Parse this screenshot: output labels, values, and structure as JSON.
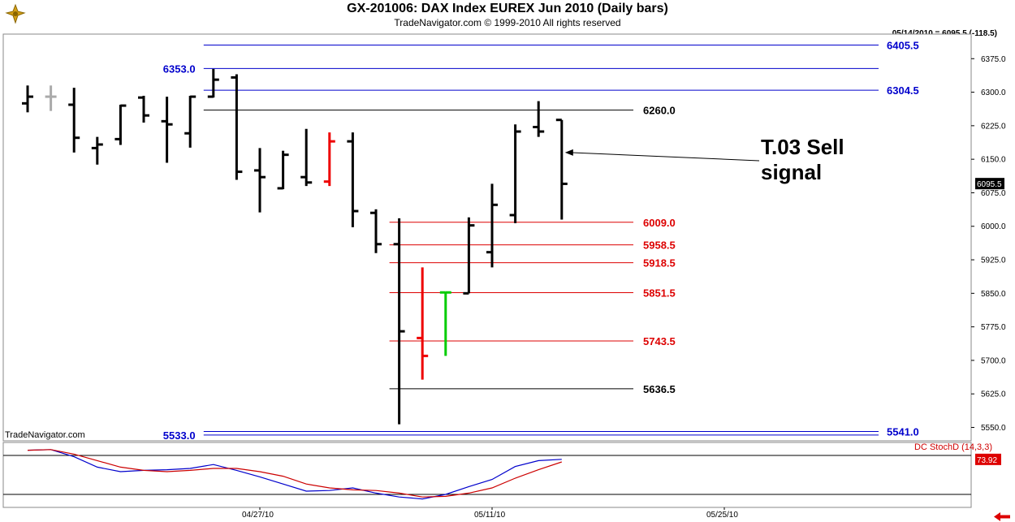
{
  "header": {
    "title": "GX-201006:  DAX Index EUREX Jun 2010  (Daily bars)",
    "subtitle": "TradeNavigator.com © 1999-2010 All rights reserved",
    "last_info": "05/14/2010 = 6095.5 (-118.5)",
    "watermark": "TradeNavigator.com",
    "logo_icon": "ship-wheel-logo-icon",
    "scroll_icon": "left-arrow-icon"
  },
  "annotation": {
    "line1": "T.03 Sell",
    "line2": "signal"
  },
  "chart_data": [
    {
      "type": "ohlc",
      "title": "GX-201006:  DAX Index EUREX Jun 2010  (Daily bars)",
      "colors": {
        "up": "#000000",
        "down": "#000000",
        "highlight_red": "#ee0000",
        "highlight_green": "#00cc00",
        "grey": "#aaaaaa",
        "blue_levels": "#0000cc",
        "red_levels": "#dd0000"
      },
      "x_ticks": [
        {
          "label": "04/27/10",
          "index": 10
        },
        {
          "label": "05/11/10",
          "index": 20
        },
        {
          "label": "05/25/10",
          "index": 30
        }
      ],
      "ylim": [
        5520,
        6430
      ],
      "y_ticks": [
        5550.0,
        5625.0,
        5700.0,
        5775.0,
        5850.0,
        5925.0,
        6000.0,
        6075.0,
        6150.0,
        6225.0,
        6300.0,
        6375.0
      ],
      "last_price_label": "6095.5",
      "bars": [
        {
          "index": 0,
          "open": 6275,
          "high": 6315,
          "low": 6255,
          "close": 6290,
          "color": "#000000"
        },
        {
          "index": 1,
          "open": 6290,
          "high": 6315,
          "low": 6258,
          "close": 6290,
          "color": "#aaaaaa"
        },
        {
          "index": 2,
          "open": 6272,
          "high": 6310,
          "low": 6165,
          "close": 6198,
          "color": "#000000"
        },
        {
          "index": 3,
          "open": 6175,
          "high": 6200,
          "low": 6138,
          "close": 6183,
          "color": "#000000"
        },
        {
          "index": 4,
          "open": 6195,
          "high": 6272,
          "low": 6182,
          "close": 6270,
          "color": "#000000"
        },
        {
          "index": 5,
          "open": 6288,
          "high": 6292,
          "low": 6232,
          "close": 6248,
          "color": "#000000"
        },
        {
          "index": 6,
          "open": 6235,
          "high": 6290,
          "low": 6142,
          "close": 6228,
          "color": "#000000"
        },
        {
          "index": 7,
          "open": 6208,
          "high": 6292,
          "low": 6176,
          "close": 6290,
          "color": "#000000"
        },
        {
          "index": 8,
          "open": 6290,
          "high": 6352,
          "low": 6288,
          "close": 6328,
          "color": "#000000"
        },
        {
          "index": 9,
          "open": 6333,
          "high": 6340,
          "low": 6104,
          "close": 6122,
          "color": "#000000"
        },
        {
          "index": 10,
          "open": 6125,
          "high": 6175,
          "low": 6031,
          "close": 6110,
          "color": "#000000"
        },
        {
          "index": 11,
          "open": 6085,
          "high": 6169,
          "low": 6083,
          "close": 6160,
          "color": "#000000"
        },
        {
          "index": 12,
          "open": 6110,
          "high": 6218,
          "low": 6090,
          "close": 6098,
          "color": "#000000"
        },
        {
          "index": 13,
          "open": 6100,
          "high": 6210,
          "low": 6090,
          "close": 6190,
          "color": "#ee0000"
        },
        {
          "index": 14,
          "open": 6190,
          "high": 6210,
          "low": 5998,
          "close": 6034,
          "color": "#000000"
        },
        {
          "index": 15,
          "open": 6030,
          "high": 6038,
          "low": 5940,
          "close": 5960,
          "color": "#000000"
        },
        {
          "index": 16,
          "open": 5960,
          "high": 6018,
          "low": 5557,
          "close": 5765,
          "color": "#000000"
        },
        {
          "index": 17,
          "open": 5750,
          "high": 5908,
          "low": 5657,
          "close": 5710,
          "color": "#ee0000"
        },
        {
          "index": 18,
          "open": 5852,
          "high": 5852,
          "low": 5710,
          "close": 5852,
          "color": "#00cc00"
        },
        {
          "index": 19,
          "open": 5850,
          "high": 6020,
          "low": 5850,
          "close": 6002,
          "color": "#000000"
        },
        {
          "index": 20,
          "open": 5942,
          "high": 6095,
          "low": 5908,
          "close": 6048,
          "color": "#000000"
        },
        {
          "index": 21,
          "open": 6025,
          "high": 6228,
          "low": 6007,
          "close": 6212,
          "color": "#000000"
        },
        {
          "index": 22,
          "open": 6222,
          "high": 6280,
          "low": 6200,
          "close": 6212,
          "color": "#000000"
        },
        {
          "index": 23,
          "open": 6238,
          "high": 6238,
          "low": 6015,
          "close": 6095,
          "color": "#000000"
        }
      ],
      "levels": [
        {
          "value": 6405.5,
          "label": "6405.5",
          "color": "#0000cc",
          "side": "right",
          "start_index": 8
        },
        {
          "value": 6353.0,
          "label": "6353.0",
          "color": "#0000cc",
          "side": "left",
          "start_index": 8
        },
        {
          "value": 6304.5,
          "label": "6304.5",
          "color": "#0000cc",
          "side": "right",
          "start_index": 8
        },
        {
          "value": 6260.0,
          "label": "6260.0",
          "color": "#000000",
          "side": "right",
          "start_index": 8
        },
        {
          "value": 6009.0,
          "label": "6009.0",
          "color": "#dd0000",
          "side": "right",
          "start_index": 16
        },
        {
          "value": 5958.5,
          "label": "5958.5",
          "color": "#dd0000",
          "side": "right",
          "start_index": 16
        },
        {
          "value": 5918.5,
          "label": "5918.5",
          "color": "#dd0000",
          "side": "right",
          "start_index": 16
        },
        {
          "value": 5851.5,
          "label": "5851.5",
          "color": "#dd0000",
          "side": "right",
          "start_index": 16
        },
        {
          "value": 5743.5,
          "label": "5743.5",
          "color": "#dd0000",
          "side": "right",
          "start_index": 16
        },
        {
          "value": 5636.5,
          "label": "5636.5",
          "color": "#000000",
          "side": "right",
          "start_index": 16
        },
        {
          "value": 5541.0,
          "label": "5541.0",
          "color": "#0000cc",
          "side": "right",
          "start_index": 8
        },
        {
          "value": 5533.0,
          "label": "5533.0",
          "color": "#0000cc",
          "side": "left",
          "start_index": 8
        }
      ],
      "arrow_target_index": 23,
      "arrow_target_value": 6165
    },
    {
      "type": "line",
      "title": "DC StochD (14,3,3)",
      "ylim": [
        0,
        100
      ],
      "last_value_label": "73.92",
      "reference_lines": [
        80,
        20
      ],
      "series": [
        {
          "color": "#0000cc",
          "values": [
            88,
            89,
            78,
            62,
            55,
            57,
            58,
            60,
            66,
            57,
            47,
            36,
            25,
            26,
            30,
            22,
            16,
            13,
            20,
            32,
            43,
            63,
            72,
            74
          ]
        },
        {
          "color": "#cc0000",
          "values": [
            88,
            89,
            82,
            72,
            62,
            57,
            55,
            57,
            60,
            60,
            55,
            48,
            36,
            30,
            27,
            26,
            22,
            16,
            17,
            22,
            30,
            45,
            58,
            70
          ]
        }
      ]
    }
  ]
}
